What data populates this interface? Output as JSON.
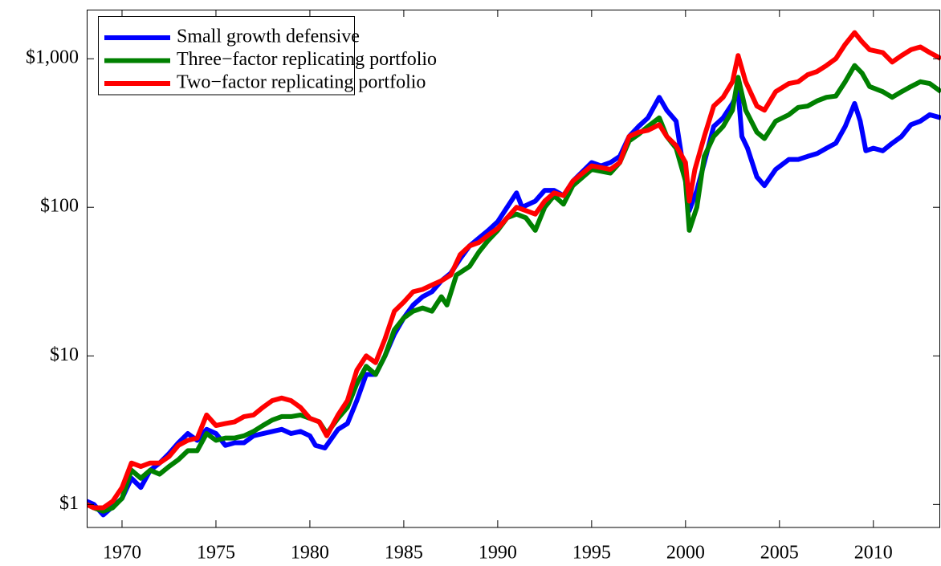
{
  "chart_data": {
    "type": "line",
    "yscale": "log",
    "legend": "upper left",
    "xlim": [
      1968.12,
      2013.6
    ],
    "ylim": [
      0.7,
      2140
    ],
    "xticks": [
      1970,
      1975,
      1980,
      1985,
      1990,
      1995,
      2000,
      2005,
      2010
    ],
    "yticks": [
      {
        "value": 1,
        "label": "$1"
      },
      {
        "value": 10,
        "label": "$10"
      },
      {
        "value": 100,
        "label": "$100"
      },
      {
        "value": 1000,
        "label": "$1,000"
      }
    ],
    "series": [
      {
        "name": "Small growth defensive",
        "color": "#0000ff",
        "x": [
          1968.12,
          1968.5,
          1969,
          1970,
          1970.5,
          1971,
          1971.5,
          1972,
          1972.5,
          1973,
          1973.5,
          1974,
          1974.5,
          1975,
          1975.5,
          1976,
          1976.5,
          1977,
          1978,
          1978.5,
          1979,
          1979.5,
          1980,
          1980.3,
          1980.8,
          1981.5,
          1982,
          1982.5,
          1983,
          1983.5,
          1984,
          1984.5,
          1985,
          1985.5,
          1986,
          1986.5,
          1987,
          1987.5,
          1988,
          1988.5,
          1989,
          1989.5,
          1990,
          1990.5,
          1991,
          1991.3,
          1992,
          1992.5,
          1993,
          1993.5,
          1994,
          1995,
          1995.5,
          1996,
          1996.5,
          1997,
          1997.5,
          1998,
          1998.6,
          1999,
          1999.5,
          2000,
          2000.2,
          2000.6,
          2001,
          2001.5,
          2002,
          2002.5,
          2002.8,
          2003,
          2003.3,
          2003.8,
          2004.2,
          2004.8,
          2005.5,
          2006,
          2006.5,
          2007,
          2007.5,
          2008,
          2008.5,
          2009,
          2009.3,
          2009.6,
          2010,
          2010.5,
          2011,
          2011.5,
          2012,
          2012.5,
          2013,
          2013.6
        ],
        "values": [
          1.05,
          1.0,
          0.85,
          1.1,
          1.5,
          1.3,
          1.7,
          1.9,
          2.2,
          2.6,
          3.0,
          2.7,
          3.2,
          3.0,
          2.5,
          2.6,
          2.6,
          2.9,
          3.1,
          3.2,
          3.0,
          3.1,
          2.9,
          2.5,
          2.4,
          3.2,
          3.5,
          5,
          7.5,
          7.5,
          10,
          14,
          18,
          22,
          25,
          27,
          32,
          36,
          45,
          55,
          62,
          70,
          80,
          100,
          125,
          100,
          110,
          130,
          130,
          120,
          150,
          200,
          190,
          200,
          220,
          300,
          350,
          400,
          550,
          450,
          380,
          150,
          95,
          130,
          200,
          350,
          400,
          500,
          600,
          300,
          250,
          160,
          140,
          180,
          210,
          210,
          220,
          230,
          250,
          270,
          350,
          500,
          380,
          240,
          250,
          240,
          270,
          300,
          360,
          380,
          420,
          400
        ]
      },
      {
        "name": "Three−factor replicating portfolio",
        "color": "#008000",
        "x": [
          1968.12,
          1968.5,
          1969,
          1969.5,
          1970,
          1970.5,
          1971,
          1971.5,
          1972,
          1972.5,
          1973,
          1973.5,
          1974,
          1974.5,
          1975,
          1975.5,
          1976,
          1976.5,
          1977,
          1977.5,
          1978,
          1978.5,
          1979,
          1979.5,
          1980,
          1980.5,
          1980.9,
          1981.5,
          1982,
          1982.5,
          1983,
          1983.5,
          1984,
          1984.5,
          1985,
          1985.5,
          1986,
          1986.5,
          1987,
          1987.3,
          1987.8,
          1988.5,
          1989,
          1989.5,
          1990,
          1990.5,
          1991,
          1991.5,
          1992,
          1992.5,
          1993,
          1993.5,
          1994,
          1995,
          1996,
          1996.5,
          1997,
          1997.5,
          1998,
          1998.6,
          1999,
          1999.5,
          2000,
          2000.2,
          2000.6,
          2001,
          2001.5,
          2002,
          2002.5,
          2002.8,
          2003.2,
          2003.8,
          2004.2,
          2004.8,
          2005.5,
          2006,
          2006.5,
          2007,
          2007.5,
          2008,
          2008.5,
          2009,
          2009.4,
          2009.8,
          2010.5,
          2011,
          2011.5,
          2012,
          2012.5,
          2013,
          2013.6
        ],
        "values": [
          1.0,
          0.95,
          0.9,
          0.95,
          1.1,
          1.7,
          1.5,
          1.7,
          1.6,
          1.8,
          2.0,
          2.3,
          2.3,
          3.0,
          2.7,
          2.8,
          2.8,
          2.9,
          3.1,
          3.4,
          3.7,
          3.9,
          3.9,
          4.0,
          3.8,
          3.6,
          3.0,
          3.8,
          4.5,
          6.5,
          8.5,
          7.5,
          10,
          15,
          18,
          20,
          21,
          20,
          25,
          22,
          35,
          40,
          50,
          60,
          70,
          85,
          90,
          85,
          70,
          100,
          120,
          105,
          140,
          180,
          170,
          200,
          280,
          310,
          350,
          400,
          300,
          250,
          150,
          70,
          100,
          220,
          300,
          350,
          450,
          750,
          450,
          320,
          290,
          380,
          420,
          470,
          480,
          520,
          550,
          560,
          700,
          900,
          800,
          650,
          600,
          550,
          600,
          650,
          700,
          680,
          600
        ]
      },
      {
        "name": "Two−factor replicating portfolio",
        "color": "#ff0000",
        "x": [
          1968.12,
          1968.5,
          1969,
          1969.5,
          1970,
          1970.5,
          1971,
          1971.5,
          1972,
          1972.5,
          1973,
          1973.5,
          1974,
          1974.5,
          1975,
          1975.5,
          1976,
          1976.5,
          1977,
          1977.5,
          1978,
          1978.5,
          1979,
          1979.5,
          1980,
          1980.5,
          1980.9,
          1981.5,
          1982,
          1982.5,
          1983,
          1983.5,
          1984,
          1984.5,
          1985,
          1985.5,
          1986,
          1986.5,
          1987,
          1987.5,
          1988,
          1988.5,
          1989,
          1989.5,
          1990,
          1990.5,
          1991,
          1991.5,
          1992,
          1992.5,
          1993,
          1993.5,
          1994,
          1995,
          1996,
          1996.5,
          1997,
          1997.5,
          1998,
          1998.6,
          1999,
          1999.5,
          2000,
          2000.2,
          2000.5,
          2001,
          2001.5,
          2002,
          2002.5,
          2002.8,
          2003.2,
          2003.8,
          2004.2,
          2004.8,
          2005.5,
          2006,
          2006.5,
          2007,
          2007.5,
          2008,
          2008.5,
          2009,
          2009.4,
          2009.8,
          2010.5,
          2011,
          2011.5,
          2012,
          2012.5,
          2013,
          2013.6
        ],
        "values": [
          1.0,
          0.95,
          0.95,
          1.05,
          1.3,
          1.9,
          1.8,
          1.9,
          1.9,
          2.1,
          2.5,
          2.7,
          2.8,
          4.0,
          3.4,
          3.5,
          3.6,
          3.9,
          4.0,
          4.5,
          5.0,
          5.2,
          5.0,
          4.5,
          3.8,
          3.6,
          2.9,
          4.0,
          5.0,
          8,
          10,
          9,
          13,
          20,
          23,
          27,
          28,
          30,
          32,
          35,
          48,
          55,
          58,
          65,
          72,
          85,
          100,
          95,
          90,
          110,
          125,
          120,
          150,
          190,
          180,
          200,
          300,
          320,
          330,
          360,
          300,
          260,
          200,
          110,
          180,
          300,
          480,
          550,
          700,
          1050,
          700,
          480,
          450,
          600,
          680,
          700,
          780,
          820,
          900,
          1000,
          1250,
          1500,
          1300,
          1150,
          1100,
          950,
          1050,
          1150,
          1200,
          1100,
          1000
        ]
      }
    ]
  }
}
